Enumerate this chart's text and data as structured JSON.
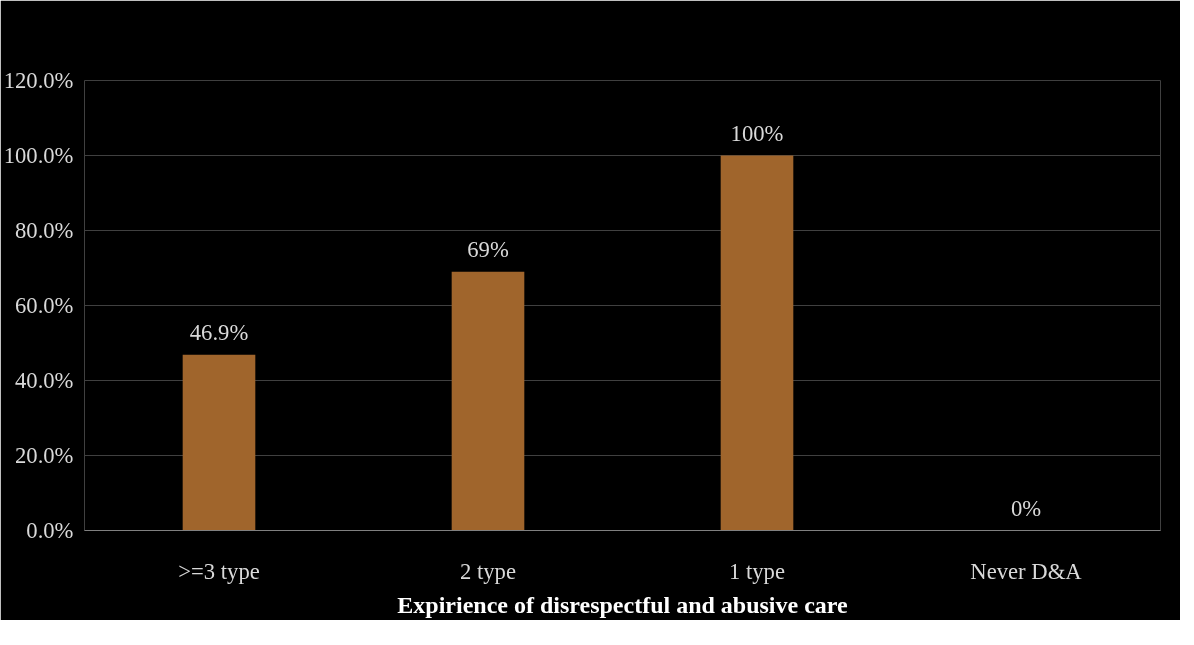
{
  "chart_data": {
    "type": "bar",
    "xlabel": "Expirience of disrespectful and abusive care",
    "categories": [
      ">=3 type",
      "2 type",
      "1 type",
      "Never D&A"
    ],
    "values": [
      46.9,
      69,
      100,
      0
    ],
    "value_labels": [
      "46.9%",
      "69%",
      "100%",
      "0%"
    ],
    "color": "#a0652c",
    "ylim": [
      0,
      120
    ],
    "yticks": [
      {
        "value": 0,
        "label": "0.0%"
      },
      {
        "value": 20,
        "label": "20.0%"
      },
      {
        "value": 40,
        "label": "40.0%"
      },
      {
        "value": 60,
        "label": "60.0%"
      },
      {
        "value": 80,
        "label": "80.0%"
      },
      {
        "value": 100,
        "label": "100.0%"
      },
      {
        "value": 120,
        "label": "120.0%"
      }
    ],
    "grid": "y"
  }
}
